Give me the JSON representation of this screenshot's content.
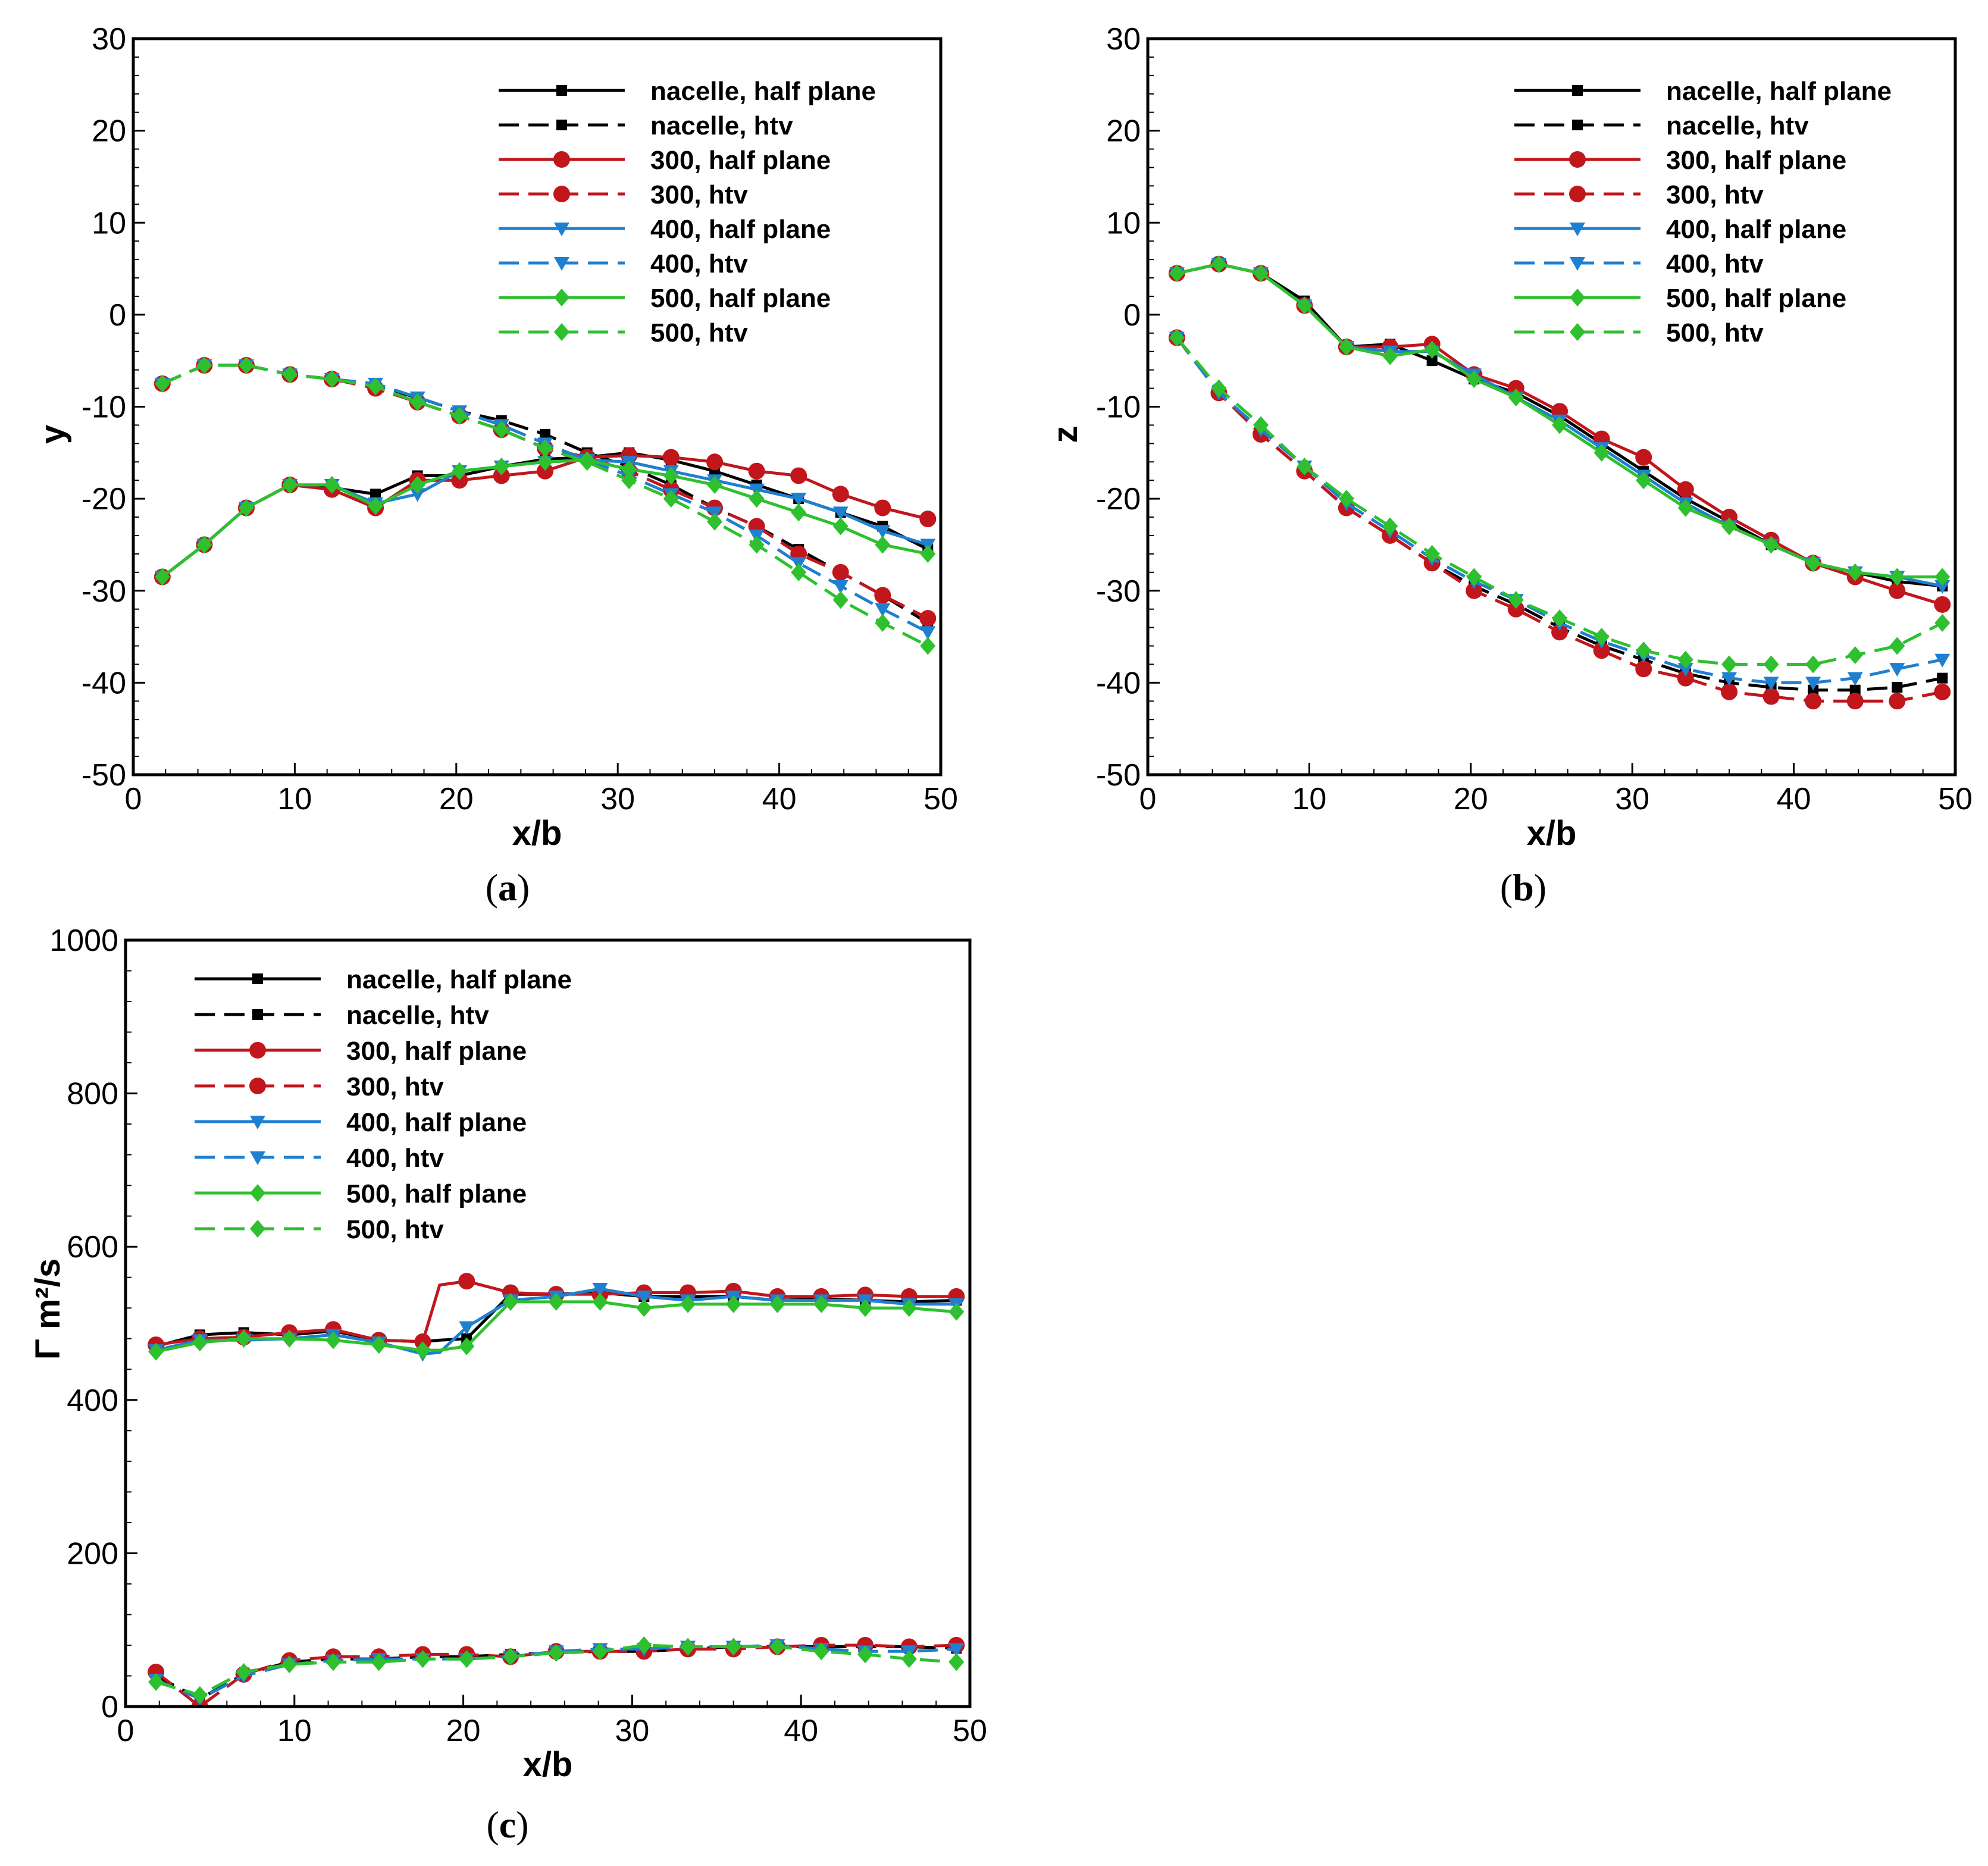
{
  "colors": {
    "nacelle": "#000000",
    "300": "#c0161c",
    "400": "#1f7fd0",
    "500": "#2ec02e"
  },
  "legend_labels": [
    "nacelle, half plane",
    "nacelle, htv",
    "300, half plane",
    "300, htv",
    "400, half plane",
    "400, htv",
    "500, half plane",
    "500, htv"
  ],
  "chart_data": [
    {
      "type": "line",
      "panel_label": "a",
      "xlabel": "x/b",
      "ylabel": "y",
      "xlim": [
        0,
        50
      ],
      "ylim": [
        -50,
        30
      ],
      "xticks": [
        "0",
        "10",
        "20",
        "30",
        "40",
        "50"
      ],
      "yticks": [
        "-50",
        "-40",
        "-30",
        "-20",
        "-10",
        "0",
        "10",
        "20",
        "30"
      ],
      "x": [
        1.8,
        4.4,
        7.0,
        9.7,
        12.3,
        15.0,
        17.6,
        20.2,
        22.8,
        25.5,
        28.1,
        30.7,
        33.3,
        36.0,
        38.6,
        41.2,
        43.8,
        46.4,
        49.2
      ],
      "series": [
        {
          "name": "nacelle, half plane",
          "group": "nacelle",
          "style": "solid",
          "marker": "square",
          "values": [
            -28.5,
            -25.0,
            -21.0,
            -18.5,
            -18.8,
            -19.5,
            -17.5,
            -17.5,
            -16.5,
            -15.7,
            -15.5,
            -15.0,
            -15.8,
            -17.0,
            -18.5,
            -20.0,
            -21.5,
            -23.0,
            -25.5
          ]
        },
        {
          "name": "nacelle, htv",
          "group": "nacelle",
          "style": "dash",
          "marker": "square",
          "values": [
            -7.5,
            -5.5,
            -5.5,
            -6.5,
            -7.0,
            -7.8,
            -9.0,
            -10.5,
            -11.5,
            -13.0,
            -15.0,
            -16.5,
            -18.5,
            -21.0,
            -23.0,
            -25.5,
            -28.0,
            -30.5,
            -33.5
          ]
        },
        {
          "name": "300, half plane",
          "group": "300",
          "style": "solid",
          "marker": "circle",
          "values": [
            -28.5,
            -25.0,
            -21.0,
            -18.5,
            -19.0,
            -21.0,
            -18.0,
            -18.0,
            -17.5,
            -17.0,
            -15.5,
            -15.3,
            -15.5,
            -16.0,
            -17.0,
            -17.5,
            -19.5,
            -21.0,
            -22.2
          ]
        },
        {
          "name": "300, htv",
          "group": "300",
          "style": "dash",
          "marker": "circle",
          "values": [
            -7.5,
            -5.5,
            -5.5,
            -6.5,
            -7.0,
            -8.0,
            -9.5,
            -11.0,
            -12.5,
            -14.5,
            -15.5,
            -17.0,
            -19.0,
            -21.0,
            -23.0,
            -26.0,
            -28.0,
            -30.5,
            -33.0
          ]
        },
        {
          "name": "400, half plane",
          "group": "400",
          "style": "solid",
          "marker": "triangle",
          "values": [
            -28.5,
            -25.0,
            -21.0,
            -18.5,
            -18.5,
            -20.5,
            -19.5,
            -17.0,
            -16.5,
            -16.0,
            -15.8,
            -16.0,
            -17.0,
            -18.0,
            -19.0,
            -20.0,
            -21.5,
            -23.5,
            -25.0
          ]
        },
        {
          "name": "400, htv",
          "group": "400",
          "style": "dash",
          "marker": "triangle",
          "values": [
            -7.5,
            -5.5,
            -5.5,
            -6.5,
            -7.0,
            -7.5,
            -9.0,
            -10.5,
            -12.0,
            -14.0,
            -15.8,
            -17.5,
            -19.5,
            -21.5,
            -24.0,
            -27.0,
            -29.5,
            -32.0,
            -34.5
          ]
        },
        {
          "name": "500, half plane",
          "group": "500",
          "style": "solid",
          "marker": "diamond",
          "values": [
            -28.5,
            -25.0,
            -21.0,
            -18.5,
            -18.5,
            -20.8,
            -18.5,
            -17.0,
            -16.5,
            -16.0,
            -15.8,
            -16.8,
            -17.5,
            -18.5,
            -20.0,
            -21.5,
            -23.0,
            -25.0,
            -26.0
          ]
        },
        {
          "name": "500, htv",
          "group": "500",
          "style": "dash",
          "marker": "diamond",
          "values": [
            -7.5,
            -5.5,
            -5.5,
            -6.5,
            -7.0,
            -7.8,
            -9.5,
            -11.0,
            -12.5,
            -14.5,
            -16.0,
            -18.0,
            -20.0,
            -22.5,
            -25.0,
            -28.0,
            -31.0,
            -33.5,
            -36.0
          ]
        }
      ]
    },
    {
      "type": "line",
      "panel_label": "b",
      "xlabel": "x/b",
      "ylabel": "z",
      "xlim": [
        0,
        50
      ],
      "ylim": [
        -50,
        30
      ],
      "xticks": [
        "0",
        "10",
        "20",
        "30",
        "40",
        "50"
      ],
      "yticks": [
        "-50",
        "-40",
        "-30",
        "-20",
        "-10",
        "0",
        "10",
        "20",
        "30"
      ],
      "x": [
        1.8,
        4.4,
        7.0,
        9.7,
        12.3,
        15.0,
        17.6,
        20.2,
        22.8,
        25.5,
        28.1,
        30.7,
        33.3,
        36.0,
        38.6,
        41.2,
        43.8,
        46.4,
        49.2
      ],
      "series": [
        {
          "name": "nacelle, half plane",
          "group": "nacelle",
          "style": "solid",
          "marker": "square",
          "values": [
            4.5,
            5.5,
            4.5,
            1.5,
            -3.5,
            -3.2,
            -5.0,
            -7.0,
            -8.5,
            -11.0,
            -14.0,
            -17.0,
            -20.0,
            -22.5,
            -25.0,
            -27.0,
            -28.0,
            -29.0,
            -29.5
          ]
        },
        {
          "name": "nacelle, htv",
          "group": "nacelle",
          "style": "dash",
          "marker": "square",
          "values": [
            -2.5,
            -8.5,
            -13.0,
            -17.0,
            -21.0,
            -24.0,
            -27.0,
            -29.5,
            -31.5,
            -34.0,
            -36.0,
            -37.5,
            -39.0,
            -40.0,
            -40.5,
            -40.8,
            -40.8,
            -40.5,
            -39.5
          ]
        },
        {
          "name": "300, half plane",
          "group": "300",
          "style": "solid",
          "marker": "circle",
          "values": [
            4.5,
            5.5,
            4.5,
            1.0,
            -3.5,
            -3.5,
            -3.2,
            -6.5,
            -8.0,
            -10.5,
            -13.5,
            -15.5,
            -19.0,
            -22.0,
            -24.5,
            -27.0,
            -28.5,
            -30.0,
            -31.5
          ]
        },
        {
          "name": "300, htv",
          "group": "300",
          "style": "dash",
          "marker": "circle",
          "values": [
            -2.5,
            -8.5,
            -13.0,
            -17.0,
            -21.0,
            -24.0,
            -27.0,
            -30.0,
            -32.0,
            -34.5,
            -36.5,
            -38.5,
            -39.5,
            -41.0,
            -41.5,
            -42.0,
            -42.0,
            -42.0,
            -41.0
          ]
        },
        {
          "name": "400, half plane",
          "group": "400",
          "style": "solid",
          "marker": "triangle",
          "values": [
            4.5,
            5.5,
            4.5,
            1.0,
            -3.5,
            -4.0,
            -4.0,
            -6.5,
            -9.0,
            -11.5,
            -14.5,
            -17.5,
            -20.5,
            -23.0,
            -25.0,
            -27.0,
            -28.0,
            -28.5,
            -29.5
          ]
        },
        {
          "name": "400, htv",
          "group": "400",
          "style": "dash",
          "marker": "triangle",
          "values": [
            -2.5,
            -8.5,
            -12.5,
            -16.5,
            -20.5,
            -23.5,
            -26.5,
            -29.0,
            -31.0,
            -33.5,
            -35.5,
            -37.0,
            -38.5,
            -39.5,
            -40.0,
            -40.0,
            -39.5,
            -38.5,
            -37.5
          ]
        },
        {
          "name": "500, half plane",
          "group": "500",
          "style": "solid",
          "marker": "diamond",
          "values": [
            4.5,
            5.5,
            4.5,
            1.0,
            -3.5,
            -4.5,
            -3.8,
            -7.0,
            -9.0,
            -12.0,
            -15.0,
            -18.0,
            -21.0,
            -23.0,
            -25.0,
            -27.0,
            -28.0,
            -28.5,
            -28.5
          ]
        },
        {
          "name": "500, htv",
          "group": "500",
          "style": "dash",
          "marker": "diamond",
          "values": [
            -2.5,
            -8.0,
            -12.0,
            -16.5,
            -20.0,
            -23.0,
            -26.0,
            -28.5,
            -31.0,
            -33.0,
            -35.0,
            -36.5,
            -37.5,
            -38.0,
            -38.0,
            -38.0,
            -37.0,
            -36.0,
            -33.5
          ]
        }
      ]
    },
    {
      "type": "line",
      "panel_label": "c",
      "xlabel": "x/b",
      "ylabel": "Γ m²/s",
      "xlim": [
        0,
        50
      ],
      "ylim": [
        0,
        1000
      ],
      "xticks": [
        "0",
        "10",
        "20",
        "30",
        "40",
        "50"
      ],
      "yticks": [
        "0",
        "200",
        "400",
        "600",
        "800",
        "1000"
      ],
      "x": [
        1.8,
        4.4,
        7.0,
        9.7,
        12.3,
        15.0,
        17.6,
        18.6,
        20.2,
        22.8,
        25.5,
        28.1,
        30.7,
        33.3,
        36.0,
        38.6,
        41.2,
        43.8,
        46.4,
        49.2
      ],
      "series": [
        {
          "name": "nacelle, half plane",
          "group": "nacelle",
          "style": "solid",
          "marker": "square",
          "values": [
            470,
            485,
            488,
            485,
            490,
            478,
            476,
            478,
            480,
            538,
            538,
            540,
            535,
            535,
            535,
            530,
            532,
            530,
            528,
            530
          ]
        },
        {
          "name": "nacelle, htv",
          "group": "nacelle",
          "style": "dash",
          "marker": "square",
          "values": [
            40,
            10,
            42,
            58,
            62,
            62,
            65,
            65,
            65,
            68,
            70,
            72,
            72,
            75,
            78,
            78,
            78,
            78,
            78,
            76
          ]
        },
        {
          "name": "300, half plane",
          "group": "300",
          "style": "solid",
          "marker": "circle",
          "values": [
            472,
            480,
            482,
            488,
            492,
            478,
            476,
            550,
            555,
            540,
            538,
            538,
            540,
            540,
            542,
            535,
            535,
            537,
            535,
            535
          ]
        },
        {
          "name": "300, htv",
          "group": "300",
          "style": "dash",
          "marker": "circle",
          "values": [
            45,
            0,
            42,
            60,
            65,
            65,
            68,
            68,
            68,
            65,
            72,
            72,
            72,
            75,
            75,
            78,
            80,
            80,
            78,
            80
          ]
        },
        {
          "name": "400, half plane",
          "group": "400",
          "style": "solid",
          "marker": "triangle",
          "values": [
            465,
            478,
            478,
            480,
            485,
            475,
            460,
            462,
            495,
            530,
            535,
            545,
            535,
            530,
            535,
            530,
            530,
            530,
            525,
            525
          ]
        },
        {
          "name": "400, htv",
          "group": "400",
          "style": "dash",
          "marker": "triangle",
          "values": [
            35,
            10,
            40,
            55,
            60,
            62,
            62,
            62,
            62,
            65,
            72,
            75,
            75,
            78,
            78,
            80,
            75,
            72,
            72,
            75
          ]
        },
        {
          "name": "500, half plane",
          "group": "500",
          "style": "solid",
          "marker": "diamond",
          "values": [
            463,
            475,
            480,
            480,
            478,
            472,
            465,
            465,
            470,
            528,
            528,
            528,
            520,
            525,
            525,
            525,
            525,
            520,
            520,
            515
          ]
        },
        {
          "name": "500, htv",
          "group": "500",
          "style": "dash",
          "marker": "diamond",
          "values": [
            32,
            15,
            45,
            55,
            58,
            58,
            62,
            62,
            62,
            65,
            70,
            72,
            80,
            78,
            78,
            78,
            72,
            68,
            62,
            58
          ]
        }
      ]
    }
  ]
}
